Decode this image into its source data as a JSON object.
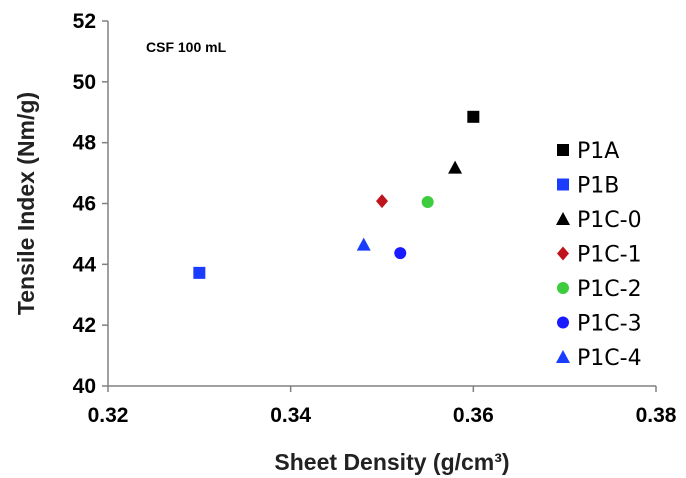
{
  "chart_data": {
    "type": "scatter",
    "annotation": "CSF 100 mL",
    "xlabel": "Sheet Density (g/cm³)",
    "ylabel": "Tensile Index (Nm/g)",
    "xlim": [
      0.32,
      0.38
    ],
    "ylim": [
      40,
      52
    ],
    "xticks": [
      "0.32",
      "0.34",
      "0.36",
      "0.38"
    ],
    "yticks": [
      "40",
      "42",
      "44",
      "46",
      "48",
      "50",
      "52"
    ],
    "grid": false,
    "legend_position": "right",
    "series": [
      {
        "name": "P1A",
        "marker": "square",
        "color": "#000000",
        "x": [
          0.36
        ],
        "y": [
          48.85
        ]
      },
      {
        "name": "P1B",
        "marker": "square",
        "color": "#1a3cff",
        "x": [
          0.33
        ],
        "y": [
          43.72
        ]
      },
      {
        "name": "P1C-0",
        "marker": "triangle",
        "color": "#000000",
        "x": [
          0.358
        ],
        "y": [
          47.18
        ]
      },
      {
        "name": "P1C-1",
        "marker": "diamond",
        "color": "#c0141c",
        "x": [
          0.35
        ],
        "y": [
          46.08
        ]
      },
      {
        "name": "P1C-2",
        "marker": "circle",
        "color": "#3dcc3d",
        "x": [
          0.355
        ],
        "y": [
          46.05
        ]
      },
      {
        "name": "P1C-3",
        "marker": "circle",
        "color": "#1a1aff",
        "x": [
          0.352
        ],
        "y": [
          44.37
        ]
      },
      {
        "name": "P1C-4",
        "marker": "triangle",
        "color": "#1a3cff",
        "x": [
          0.348
        ],
        "y": [
          44.65
        ]
      }
    ]
  }
}
